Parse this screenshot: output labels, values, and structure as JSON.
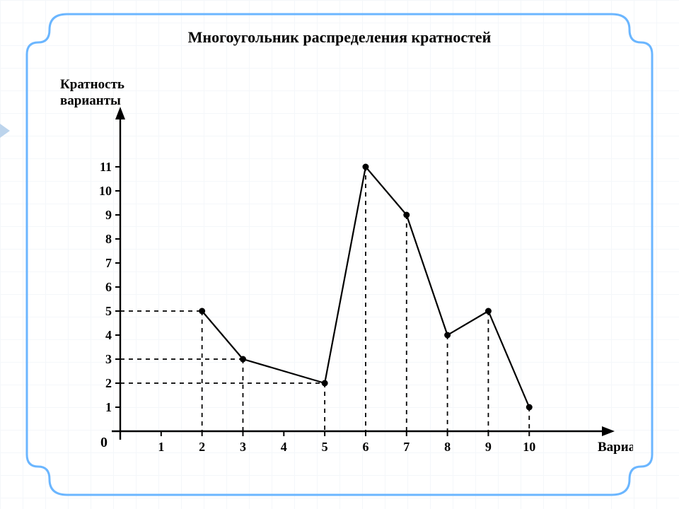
{
  "title": "Многоугольник распределения кратностей",
  "title_fontsize": 22,
  "y_axis_label_line1": "Кратность",
  "y_axis_label_line2": "варианты",
  "x_axis_label": "Варианта",
  "axis_label_fontsize": 19,
  "tick_fontsize": 18,
  "origin_label": "0",
  "chart": {
    "type": "line",
    "x_values": [
      2,
      3,
      5,
      6,
      7,
      8,
      9,
      10
    ],
    "y_values": [
      5,
      3,
      2,
      11,
      9,
      4,
      5,
      1
    ],
    "x_ticks": [
      1,
      2,
      3,
      4,
      5,
      6,
      7,
      8,
      9,
      10
    ],
    "y_ticks": [
      1,
      2,
      3,
      4,
      5,
      6,
      7,
      8,
      9,
      10,
      11
    ],
    "xlim": [
      0,
      11.5
    ],
    "ylim": [
      0,
      12.5
    ],
    "line_color": "#000000",
    "line_width": 2.2,
    "marker_radius": 4.5,
    "marker_fill": "#000000",
    "dash_pattern": "6 6",
    "axis_color": "#000000",
    "axis_width": 2.4,
    "background_color": "#ffffff",
    "y_guide_lines": [
      {
        "y": 5,
        "x": 2
      },
      {
        "y": 3,
        "x": 3
      },
      {
        "y": 2,
        "x": 5
      }
    ],
    "frame_color": "#6bb6ff",
    "frame_width": 3
  }
}
